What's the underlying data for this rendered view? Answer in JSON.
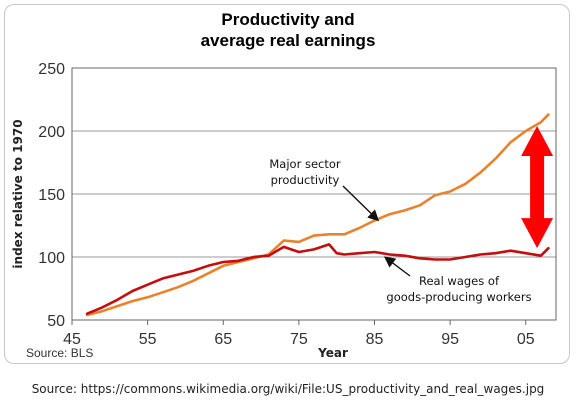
{
  "caption": "Source:  https://commons.wikimedia.org/wiki/File:US_productivity_and_real_wages.jpg",
  "colors": {
    "productivity": "#e8822c",
    "wages": "#c40d0d",
    "arrow": "#ff0000",
    "grid": "#9a9a9a"
  },
  "chart_data": {
    "type": "line",
    "title": [
      "Productivity and",
      "average real earnings"
    ],
    "xlabel": "Year",
    "ylabel": "index relative to 1970",
    "source": "Source: BLS",
    "xlim": [
      1945,
      2009
    ],
    "ylim": [
      50,
      250
    ],
    "xticks": [
      {
        "value": 1945,
        "label": "45"
      },
      {
        "value": 1955,
        "label": "55"
      },
      {
        "value": 1965,
        "label": "65"
      },
      {
        "value": 1975,
        "label": "75"
      },
      {
        "value": 1985,
        "label": "85"
      },
      {
        "value": 1995,
        "label": "95"
      },
      {
        "value": 2005,
        "label": "05"
      }
    ],
    "yticks": [
      50,
      100,
      150,
      200,
      250
    ],
    "grid": "horizontal",
    "series": [
      {
        "name": "Major sector productivity",
        "x": [
          1947,
          1949,
          1951,
          1953,
          1955,
          1957,
          1959,
          1961,
          1963,
          1965,
          1967,
          1969,
          1971,
          1973,
          1975,
          1977,
          1979,
          1981,
          1983,
          1985,
          1987,
          1989,
          1991,
          1993,
          1995,
          1997,
          1999,
          2001,
          2003,
          2005,
          2007,
          2008
        ],
        "y": [
          54,
          57,
          61,
          65,
          68,
          72,
          76,
          81,
          87,
          93,
          96,
          99,
          102,
          113,
          112,
          117,
          118,
          118,
          123,
          129,
          134,
          137,
          141,
          149,
          152,
          158,
          167,
          178,
          191,
          200,
          207,
          213
        ]
      },
      {
        "name": "Real wages of goods-producing workers",
        "x": [
          1947,
          1949,
          1951,
          1953,
          1955,
          1957,
          1959,
          1961,
          1963,
          1965,
          1967,
          1969,
          1971,
          1973,
          1975,
          1977,
          1979,
          1980,
          1981,
          1983,
          1985,
          1987,
          1989,
          1991,
          1993,
          1995,
          1997,
          1999,
          2001,
          2003,
          2005,
          2007,
          2008
        ],
        "y": [
          55,
          60,
          66,
          73,
          78,
          83,
          86,
          89,
          93,
          96,
          97,
          100,
          101,
          108,
          104,
          106,
          110,
          103,
          102,
          103,
          104,
          102,
          101,
          99,
          98,
          98,
          100,
          102,
          103,
          105,
          103,
          101,
          107
        ]
      }
    ],
    "annotations": [
      {
        "lines": [
          "Major sector",
          "productivity"
        ],
        "target_series": 0,
        "target_x": 1986
      },
      {
        "lines": [
          "Real wages of",
          "goods-producing workers"
        ],
        "target_series": 1,
        "target_x": 1986
      }
    ],
    "gap_arrow": {
      "x": 2006.5,
      "from": 107,
      "to": 204
    }
  }
}
